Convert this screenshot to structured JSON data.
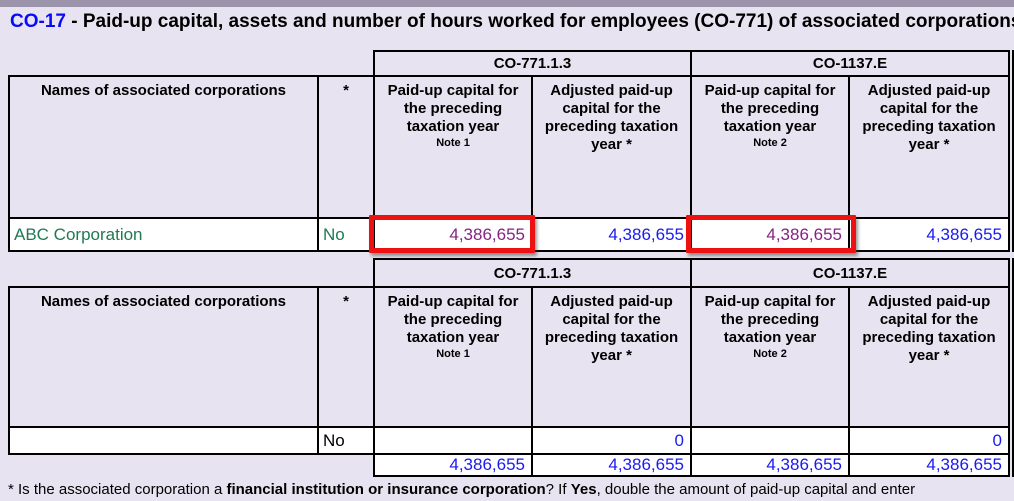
{
  "title": {
    "form_id": "CO-17",
    "rest": " - Paid-up capital, assets and number of hours worked for employees (CO-771) of associated corporations"
  },
  "headers": {
    "group": [
      "CO-771.1.3",
      "CO-1137.E"
    ],
    "names": "Names of associated corporations",
    "star": "*",
    "cols": [
      {
        "label": "Paid-up capital for the preceding taxation year",
        "note": "Note 1"
      },
      {
        "label": "Adjusted paid-up capital for the preceding taxation year *",
        "note": ""
      },
      {
        "label": "Paid-up capital for the preceding taxation year",
        "note": "Note 2"
      },
      {
        "label": "Adjusted paid-up capital for the preceding taxation year *",
        "note": ""
      }
    ]
  },
  "table1": {
    "row": {
      "name": "ABC Corporation",
      "star": "No",
      "values": [
        "4,386,655",
        "4,386,655",
        "4,386,655",
        "4,386,655"
      ]
    }
  },
  "table2": {
    "row": {
      "name": "",
      "star": "No",
      "values": [
        "",
        "0",
        "",
        "0"
      ]
    },
    "totals": [
      "4,386,655",
      "4,386,655",
      "4,386,655",
      "4,386,655"
    ]
  },
  "footnote": {
    "part1": "* Is the associated corporation a ",
    "bold1": "financial institution or insurance corporation",
    "part2": "? If ",
    "bold2": "Yes",
    "part3": ", double the amount of paid-up capital and enter"
  },
  "colors": {
    "background": "#E7E3F0",
    "topbar": "#9C94AB",
    "title_blue": "#0A0AFA",
    "entered_green": "#1F7A52",
    "highlight_purple": "#862383",
    "computed_blue": "#1A1AF0",
    "highlight_box_red": "#EE1111",
    "border": "#000000"
  }
}
